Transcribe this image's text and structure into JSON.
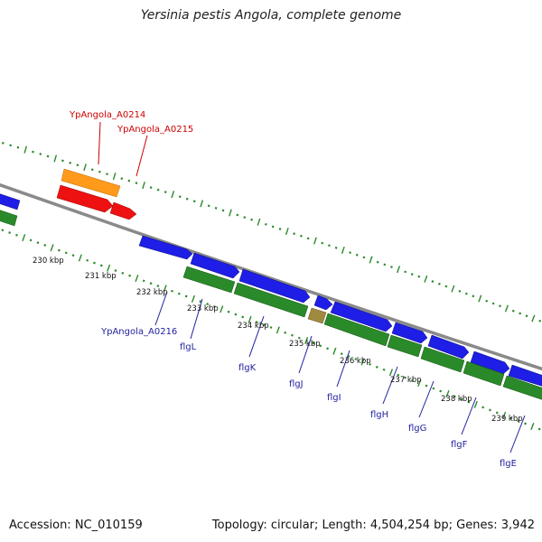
{
  "title": "Yersinia pestis Angola, complete genome",
  "footer": {
    "accession": "Accession: NC_010159",
    "topology": "Topology: circular; Length: 4,504,254 bp; Genes: 3,942"
  },
  "colors": {
    "backbone": "#8a8a8a",
    "ticks": "#2a8a2a",
    "forward_gene": "#1e1ee6",
    "reverse_gene": "#2a8a2a",
    "rna_orange": "#ff9a1a",
    "rna_red": "#ee1111",
    "pseudo": "#a08a40",
    "label_red": "#cc0000",
    "label_blue": "#1f1fa0"
  },
  "kbp_labels": [
    "230 kbp",
    "231 kbp",
    "232 kbp",
    "233 kbp",
    "234 kbp",
    "235 kbp",
    "236 kbp",
    "237 kbp",
    "238 kbp",
    "239 kbp"
  ],
  "gene_labels": [
    {
      "text": "YpAngola_A0214",
      "color": "red"
    },
    {
      "text": "YpAngola_A0215",
      "color": "red"
    },
    {
      "text": "YpAngola_A0216",
      "color": "blue"
    },
    {
      "text": "flgL",
      "color": "blue"
    },
    {
      "text": "flgK",
      "color": "blue"
    },
    {
      "text": "flgJ",
      "color": "blue"
    },
    {
      "text": "flgI",
      "color": "blue"
    },
    {
      "text": "flgH",
      "color": "blue"
    },
    {
      "text": "flgG",
      "color": "blue"
    },
    {
      "text": "flgF",
      "color": "blue"
    },
    {
      "text": "flgE",
      "color": "blue"
    }
  ]
}
